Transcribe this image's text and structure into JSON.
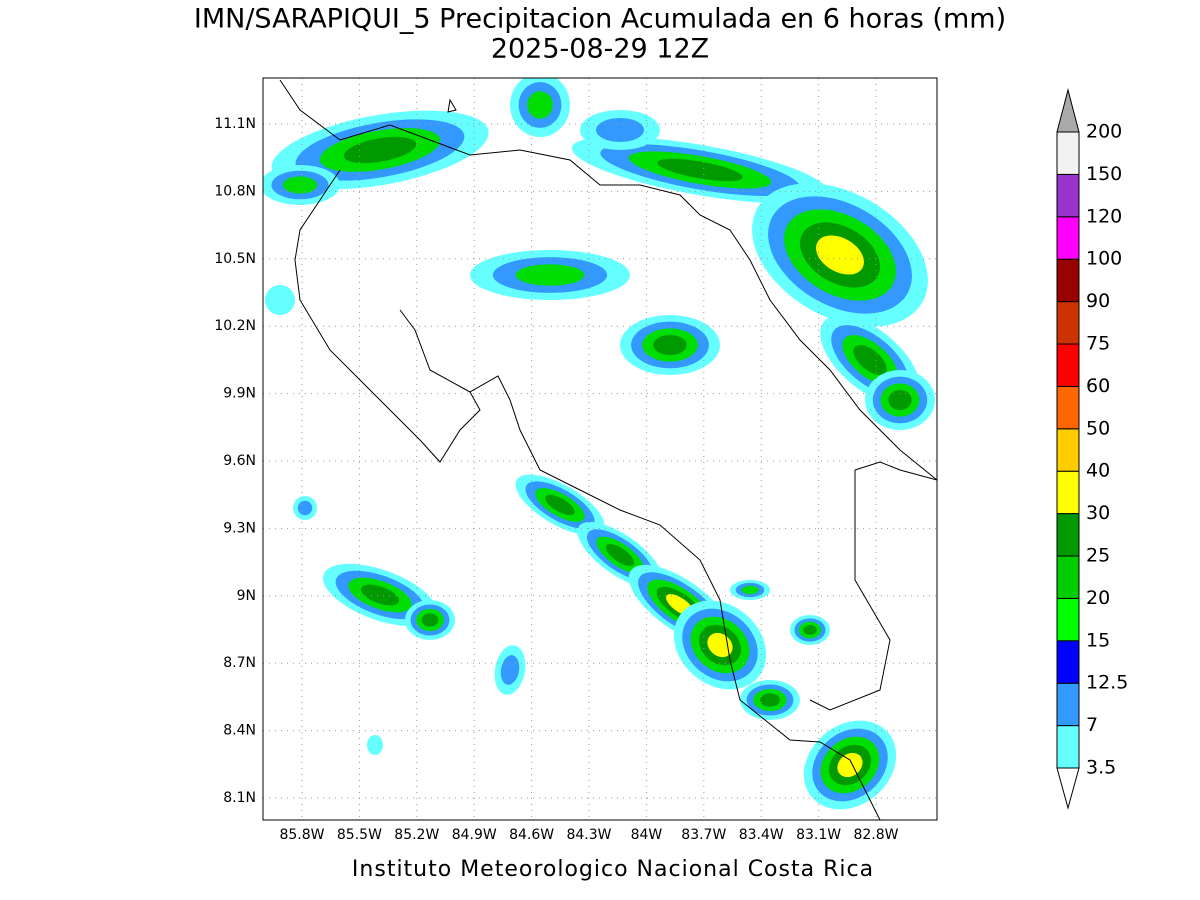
{
  "map": {
    "title": "IMN/SARAPIQUI_5 Precipitacion Acumulada en 6 horas (mm)",
    "subtitle": "2025-08-29 12Z",
    "lon_labels": [
      "85.8W",
      "85.5W",
      "85.2W",
      "84.9W",
      "84.6W",
      "84.3W",
      "84W",
      "83.7W",
      "83.4W",
      "83.1W",
      "82.8W"
    ],
    "lat_labels": [
      "11.1N",
      "10.8N",
      "10.5N",
      "10.2N",
      "9.9N",
      "9.6N",
      "9.3N",
      "9N",
      "8.7N",
      "8.4N",
      "8.1N"
    ],
    "footer": "Instituto Meteorologico Nacional Costa Rica"
  },
  "legend": {
    "levels": [
      3.5,
      7,
      12.5,
      15,
      20,
      25,
      30,
      40,
      50,
      60,
      75,
      90,
      100,
      120,
      150,
      200
    ],
    "colors": [
      "#66ffff",
      "#3399ff",
      "#0000ff",
      "#00ff00",
      "#00cc00",
      "#009900",
      "#ffff00",
      "#ffcc00",
      "#ff6600",
      "#ff0000",
      "#cc3300",
      "#990000",
      "#ff00ff",
      "#9933cc",
      "#f2f2f2"
    ],
    "under_color": "#ffffff",
    "over_color": "#aaaaaa"
  }
}
